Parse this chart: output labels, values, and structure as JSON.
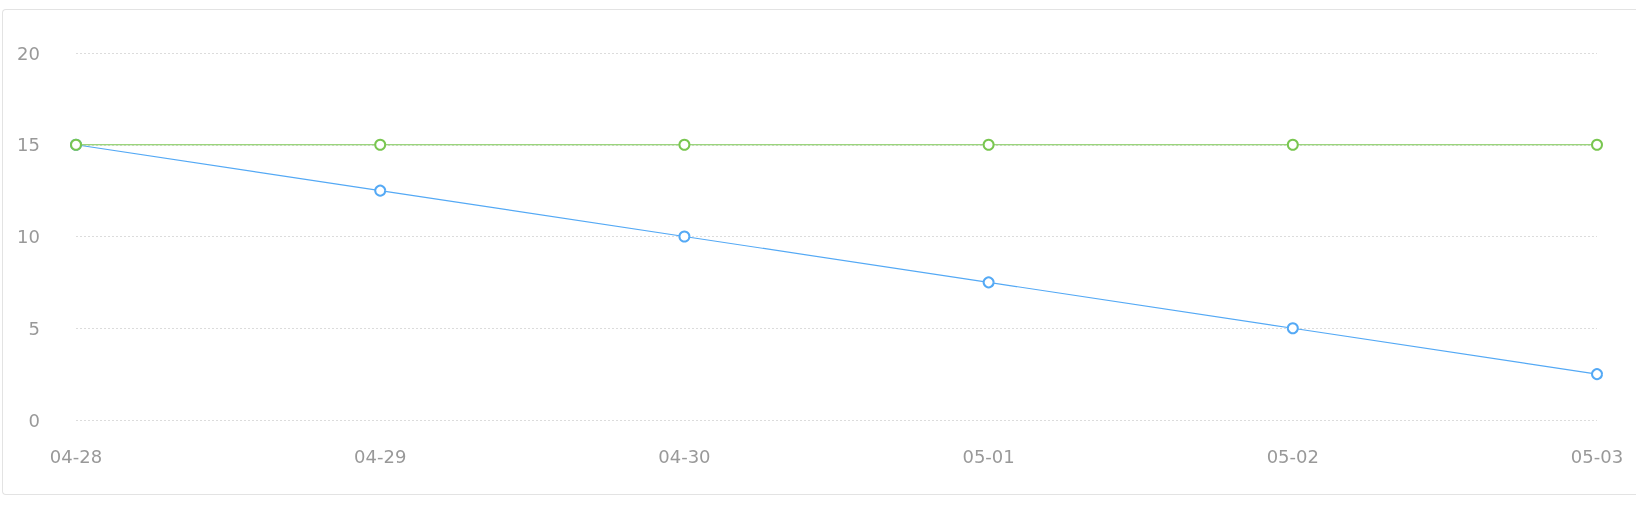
{
  "chart_data": {
    "type": "line",
    "categories": [
      "04-28",
      "04-29",
      "04-30",
      "05-01",
      "05-02",
      "05-03"
    ],
    "series": [
      {
        "color": "#54a9f5",
        "values": [
          15,
          12.5,
          10,
          7.5,
          5,
          2.5
        ]
      },
      {
        "color": "#79c650",
        "values": [
          15,
          15,
          15,
          15,
          15,
          15
        ]
      }
    ],
    "ylim": [
      0,
      20
    ],
    "yticks": [
      0,
      5,
      10,
      15,
      20
    ],
    "grid": "y",
    "marker": "circle",
    "line_style": "solid"
  }
}
